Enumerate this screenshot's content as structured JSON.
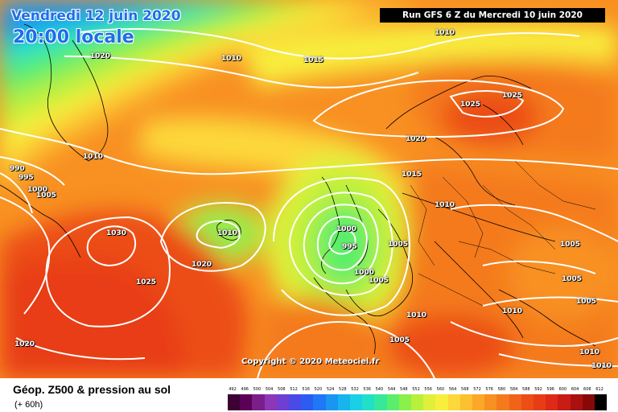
{
  "header": {
    "date": "Vendredi 12 juin 2020",
    "local_time": "20:00 locale",
    "run": "Run GFS 6 Z du Mercredi 10 juin 2020"
  },
  "copyright": "Copyright © 2020 Meteociel.fr",
  "isobar_labels": [
    {
      "text": "1010"
    },
    {
      "text": "1020"
    },
    {
      "text": "1010"
    },
    {
      "text": "1015"
    },
    {
      "text": "1025"
    },
    {
      "text": "1025"
    },
    {
      "text": "1020"
    },
    {
      "text": "1010"
    },
    {
      "text": "990"
    },
    {
      "text": "995"
    },
    {
      "text": "1000"
    },
    {
      "text": "1005"
    },
    {
      "text": "1030"
    },
    {
      "text": "1025"
    },
    {
      "text": "1010"
    },
    {
      "text": "1020"
    },
    {
      "text": "1015"
    },
    {
      "text": "1010"
    },
    {
      "text": "1000"
    },
    {
      "text": "995"
    },
    {
      "text": "1000"
    },
    {
      "text": "1005"
    },
    {
      "text": "1005"
    },
    {
      "text": "1005"
    },
    {
      "text": "1005"
    },
    {
      "text": "1005"
    },
    {
      "text": "1010"
    },
    {
      "text": "1010"
    },
    {
      "text": "1005"
    },
    {
      "text": "1020"
    },
    {
      "text": "1010"
    },
    {
      "text": "1010"
    }
  ],
  "legend": {
    "title": "Géop. Z500 & pression au sol",
    "subtitle": "(+ 60h)",
    "scale_values": [
      "492",
      "496",
      "500",
      "504",
      "508",
      "512",
      "516",
      "520",
      "524",
      "528",
      "532",
      "536",
      "540",
      "544",
      "548",
      "552",
      "556",
      "560",
      "564",
      "568",
      "572",
      "576",
      "580",
      "584",
      "588",
      "592",
      "596",
      "600",
      "604",
      "608",
      "612"
    ],
    "scale_colors": [
      "#3d0033",
      "#5c0057",
      "#7a1e8a",
      "#8e36b8",
      "#6e3fd0",
      "#4a4ae6",
      "#2d5cf0",
      "#1f78f5",
      "#1a96f2",
      "#18b4ee",
      "#1ad0e6",
      "#22e0c8",
      "#36e89a",
      "#5aee6a",
      "#8af04a",
      "#b8f03c",
      "#e0f03a",
      "#f8ee3c",
      "#fcd83a",
      "#fcc030",
      "#fba828",
      "#f89022",
      "#f47a1c",
      "#f06418",
      "#ec4e16",
      "#e83c16",
      "#de2a16",
      "#c81c14",
      "#aa1010",
      "#880808",
      "#000000"
    ]
  }
}
